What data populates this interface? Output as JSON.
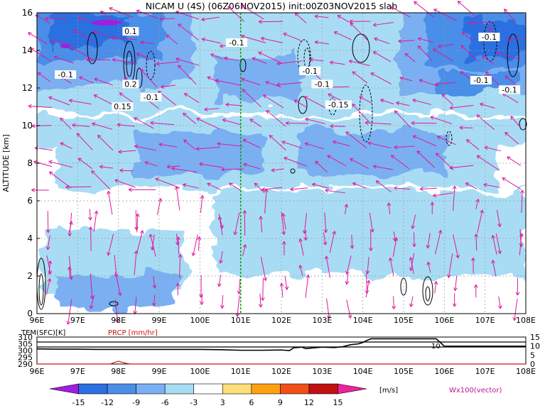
{
  "title": "NICAM U (4S) (06Z06NOV2015) init:00Z03NOV2015 slab",
  "chart_data": {
    "type": "heatmap",
    "title": "NICAM U (4S) (06Z06NOV2015) init:00Z03NOV2015 slab",
    "ylabel": "ALTITUDE [km]",
    "xlim": [
      96,
      108
    ],
    "ylim": [
      0,
      16
    ],
    "x_ticks": [
      "96E",
      "97E",
      "98E",
      "99E",
      "100E",
      "101E",
      "102E",
      "103E",
      "104E",
      "105E",
      "106E",
      "107E",
      "108E"
    ],
    "y_ticks": [
      "0",
      "2",
      "4",
      "6",
      "8",
      "10",
      "12",
      "14",
      "16"
    ],
    "marker_longitude": 101,
    "contour_labels": [
      {
        "text": "0.1",
        "lon": 98.3,
        "alt": 14.9
      },
      {
        "text": "-0.1",
        "lon": 96.7,
        "alt": 12.6
      },
      {
        "text": "0.2",
        "lon": 98.3,
        "alt": 12.1
      },
      {
        "text": "-0.1",
        "lon": 98.8,
        "alt": 11.4
      },
      {
        "text": "0.15",
        "lon": 98.1,
        "alt": 10.9
      },
      {
        "text": "-0.1",
        "lon": 100.9,
        "alt": 14.3
      },
      {
        "text": "-0.1",
        "lon": 102.7,
        "alt": 12.8
      },
      {
        "text": "-0.1",
        "lon": 103.0,
        "alt": 12.1
      },
      {
        "text": "-0.15",
        "lon": 103.4,
        "alt": 11.0
      },
      {
        "text": "-0.1",
        "lon": 106.9,
        "alt": 12.3
      },
      {
        "text": "-0.1",
        "lon": 107.1,
        "alt": 14.6
      },
      {
        "text": "-0.1",
        "lon": 107.6,
        "alt": 11.8
      }
    ],
    "lower_panel": {
      "tem_label": "TEM(SFC)[K]",
      "prcp_label": "PRCP [mm/hr]",
      "tem_ticks": [
        "310",
        "305",
        "300",
        "295",
        "290"
      ],
      "prcp_ticks": [
        "15",
        "10",
        "5",
        "0"
      ],
      "tem_ylim": [
        290,
        310
      ],
      "prcp_ylim": [
        0,
        15
      ],
      "tem_series": [
        [
          96,
          301.2
        ],
        [
          96.5,
          301.0
        ],
        [
          97,
          301.0
        ],
        [
          97.5,
          300.8
        ],
        [
          98,
          300.8
        ],
        [
          98.5,
          300.8
        ],
        [
          99,
          300.8
        ],
        [
          99.5,
          300.8
        ],
        [
          100,
          300.8
        ],
        [
          100.5,
          300.6
        ],
        [
          101,
          300.2
        ],
        [
          101.5,
          300.2
        ],
        [
          102,
          300.4
        ],
        [
          102.2,
          300.0
        ],
        [
          102.3,
          302.0
        ],
        [
          102.5,
          302.5
        ],
        [
          102.6,
          301.4
        ],
        [
          102.8,
          302.0
        ],
        [
          103,
          302.5
        ],
        [
          103.3,
          302.2
        ],
        [
          103.5,
          302.8
        ],
        [
          103.7,
          304.3
        ],
        [
          103.9,
          305.0
        ],
        [
          104,
          306.0
        ],
        [
          104.1,
          307.5
        ],
        [
          104.2,
          308.7
        ],
        [
          105,
          308.7
        ],
        [
          105.8,
          308.7
        ],
        [
          105.9,
          306.0
        ],
        [
          106,
          303.2
        ],
        [
          106.2,
          303.2
        ],
        [
          107,
          303.2
        ],
        [
          108,
          303.2
        ]
      ],
      "prcp_series": [
        [
          96,
          0
        ],
        [
          97.8,
          0
        ],
        [
          97.9,
          0.8
        ],
        [
          98.0,
          1.6
        ],
        [
          98.1,
          0.9
        ],
        [
          98.2,
          0.3
        ],
        [
          98.3,
          0
        ],
        [
          108,
          0
        ]
      ],
      "tem_inline_label": "10"
    },
    "colorbar": {
      "levels": [
        "-15",
        "-12",
        "-9",
        "-6",
        "-3",
        "3",
        "6",
        "9",
        "12",
        "15"
      ],
      "colors": [
        "#a01ee0",
        "#2c6fe0",
        "#4a8ee8",
        "#7ab0f2",
        "#a8dcf4",
        "#ffffff",
        "#ffe078",
        "#ffa010",
        "#f05018",
        "#c01010",
        "#f020a0"
      ],
      "unit": "[m/s]"
    },
    "vector_label": "Wx100(vector)"
  }
}
